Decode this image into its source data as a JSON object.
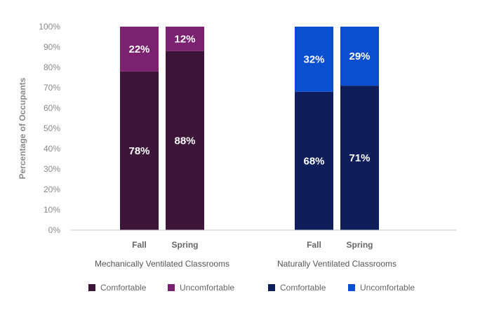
{
  "chart_data": {
    "type": "bar",
    "stacked": true,
    "ylabel": "Percentage of Occupants",
    "ylim": [
      0,
      100
    ],
    "yticks": [
      "0%",
      "10%",
      "20%",
      "30%",
      "40%",
      "50%",
      "60%",
      "70%",
      "80%",
      "90%",
      "100%"
    ],
    "grid": false,
    "legend_position": "bottom",
    "groups": [
      {
        "label": "Mechanically Ventilated Classrooms",
        "bars": [
          {
            "category": "Fall",
            "comfortable": 78,
            "uncomfortable": 22,
            "comfortable_label": "78%",
            "uncomfortable_label": "22%"
          },
          {
            "category": "Spring",
            "comfortable": 88,
            "uncomfortable": 12,
            "comfortable_label": "88%",
            "uncomfortable_label": "12%"
          }
        ],
        "colors": {
          "comfortable": "#3d1538",
          "uncomfortable": "#7c2170"
        }
      },
      {
        "label": "Naturally Ventilated Classrooms",
        "bars": [
          {
            "category": "Fall",
            "comfortable": 68,
            "uncomfortable": 32,
            "comfortable_label": "68%",
            "uncomfortable_label": "32%"
          },
          {
            "category": "Spring",
            "comfortable": 71,
            "uncomfortable": 29,
            "comfortable_label": "71%",
            "uncomfortable_label": "29%"
          }
        ],
        "colors": {
          "comfortable": "#0e1e5b",
          "uncomfortable": "#0a4fcf"
        }
      }
    ],
    "legend": [
      {
        "label": "Comfortable",
        "color": "#3d1538"
      },
      {
        "label": "Uncomfortable",
        "color": "#7c2170"
      },
      {
        "label": "Comfortable",
        "color": "#0e1e5b"
      },
      {
        "label": "Uncomfortable",
        "color": "#0a4fcf"
      }
    ]
  }
}
